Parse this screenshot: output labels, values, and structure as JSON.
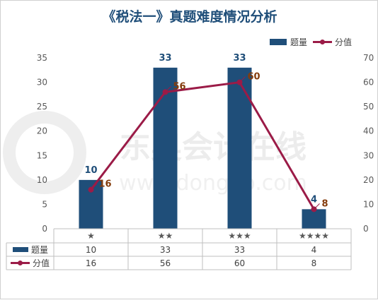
{
  "chart_data": {
    "type": "bar",
    "title": "《税法一》真题难度情况分析",
    "categories": [
      "★",
      "★★",
      "★★★",
      "★★★★"
    ],
    "series": [
      {
        "name": "题量",
        "type": "bar",
        "axis": "left",
        "values": [
          10,
          33,
          33,
          4
        ]
      },
      {
        "name": "分值",
        "type": "line",
        "axis": "right",
        "values": [
          16,
          56,
          60,
          8
        ]
      }
    ],
    "ylim_left": [
      0,
      35
    ],
    "ylim_right": [
      0,
      70
    ],
    "yticks_left": [
      "0",
      "5",
      "10",
      "15",
      "20",
      "25",
      "30",
      "35"
    ],
    "yticks_right": [
      "0",
      "10",
      "20",
      "30",
      "40",
      "50",
      "60",
      "70"
    ],
    "legend_position": "top-right",
    "data_table": true,
    "colors": {
      "bar": "#1f4e79",
      "line": "#9b1b47",
      "bar_label": "#1f4e79",
      "line_label": "#843c0c"
    }
  },
  "watermark": {
    "main": "东奥会计在线",
    "sub": "www.dongao.com"
  }
}
